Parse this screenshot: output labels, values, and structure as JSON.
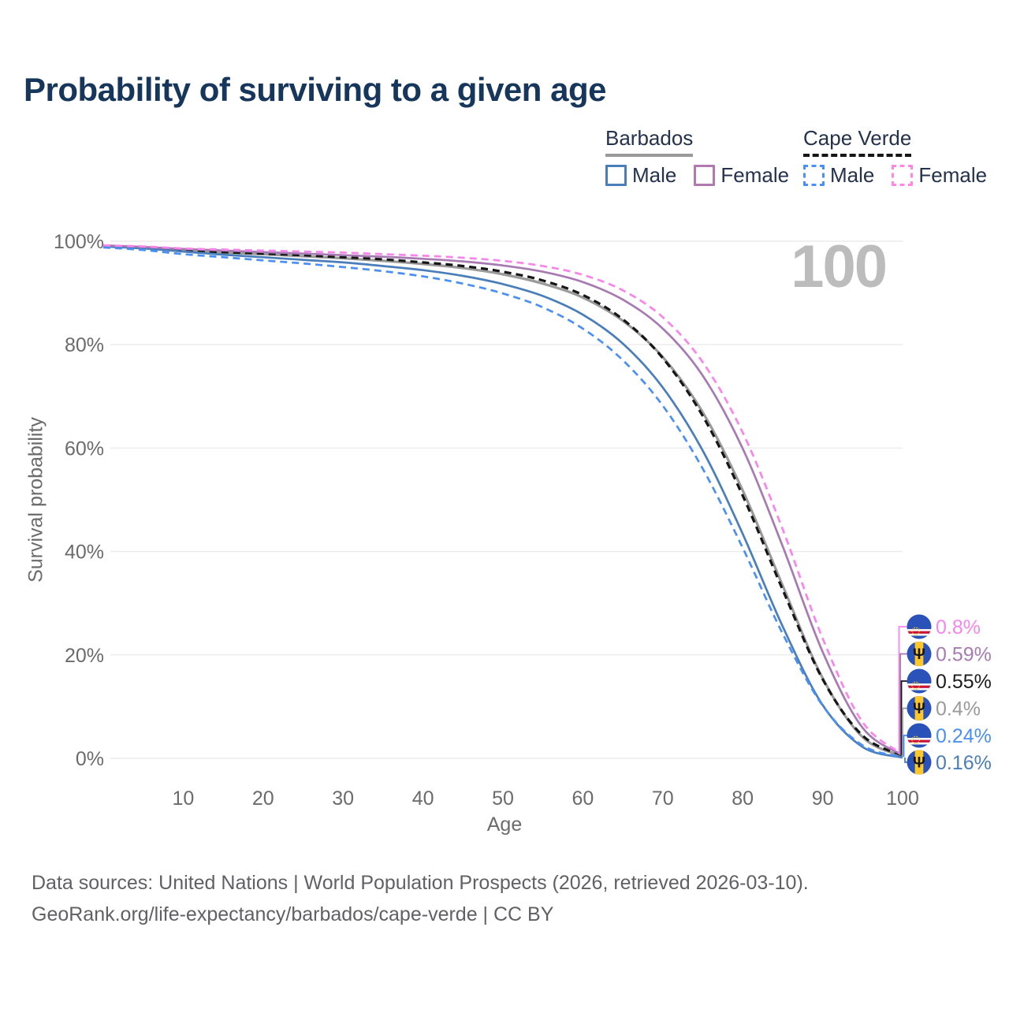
{
  "title": "Probability of surviving to a given age",
  "watermark": "100",
  "legend": {
    "groups": [
      {
        "label": "Barbados",
        "line_style": "solid",
        "underline_color": "#9a9a9a",
        "items": [
          {
            "label": "Male",
            "color": "#4a7ebb",
            "dashed": false
          },
          {
            "label": "Female",
            "color": "#b07ab0",
            "dashed": false
          }
        ]
      },
      {
        "label": "Cape Verde",
        "line_style": "dashed",
        "underline_color": "#161616",
        "items": [
          {
            "label": "Male",
            "color": "#4a90f4",
            "dashed": true
          },
          {
            "label": "Female",
            "color": "#ff85e8",
            "dashed": true
          }
        ]
      }
    ]
  },
  "axes": {
    "x": {
      "label": "Age",
      "ticks": [
        10,
        20,
        30,
        40,
        50,
        60,
        70,
        80,
        90,
        100
      ],
      "range": [
        0,
        100
      ]
    },
    "y": {
      "label": "Survival probability",
      "tick_labels": [
        "0%",
        "20%",
        "40%",
        "60%",
        "80%",
        "100%"
      ],
      "tick_values": [
        0,
        20,
        40,
        60,
        80,
        100
      ],
      "range": [
        0,
        100
      ]
    }
  },
  "chart_data": {
    "type": "line",
    "title": "Probability of surviving to a given age",
    "xlabel": "Age",
    "ylabel": "Survival probability",
    "ylim": [
      0,
      100
    ],
    "xlim": [
      0,
      100
    ],
    "grid": "horizontal",
    "legend_position": "top-right",
    "x_ages": [
      0,
      5,
      10,
      15,
      20,
      25,
      30,
      35,
      40,
      45,
      50,
      55,
      60,
      65,
      70,
      75,
      80,
      85,
      90,
      95,
      100
    ],
    "series": [
      {
        "id": "barbados_all",
        "name": "Barbados (all)",
        "color": "#9a9a9a",
        "dashed": false,
        "width": 3.2,
        "values": [
          99.1,
          98.8,
          98.3,
          97.8,
          97.5,
          97.1,
          96.7,
          96.2,
          95.6,
          94.8,
          93.6,
          91.8,
          89.1,
          84.6,
          77.6,
          66.9,
          51.8,
          33.4,
          15.5,
          4.1,
          0.4
        ]
      },
      {
        "id": "capeverde_all",
        "name": "Cape Verde (all)",
        "color": "#161616",
        "dashed": true,
        "width": 3.2,
        "values": [
          99.0,
          98.7,
          98.2,
          97.9,
          97.6,
          97.3,
          96.9,
          96.5,
          95.9,
          95.2,
          94.1,
          92.4,
          89.6,
          84.9,
          77.4,
          66.2,
          50.8,
          32.6,
          15.3,
          4.4,
          0.55
        ]
      },
      {
        "id": "barbados_male",
        "name": "Barbados Male",
        "color": "#4a7ebb",
        "dashed": false,
        "width": 2.7,
        "values": [
          99.0,
          98.6,
          98.0,
          97.4,
          96.9,
          96.4,
          95.9,
          95.2,
          94.4,
          93.3,
          91.7,
          89.4,
          85.8,
          80.2,
          71.7,
          59.5,
          43.4,
          25.5,
          10.3,
          2.2,
          0.16
        ]
      },
      {
        "id": "capeverde_male",
        "name": "Cape Verde Male",
        "color": "#4a90f4",
        "dashed": true,
        "width": 2.7,
        "values": [
          98.8,
          98.3,
          97.5,
          96.9,
          96.3,
          95.7,
          95.0,
          94.2,
          93.2,
          91.8,
          89.9,
          87.2,
          83.1,
          77.0,
          68.2,
          56.0,
          40.7,
          24.1,
          10.2,
          2.5,
          0.24
        ]
      },
      {
        "id": "barbados_female",
        "name": "Barbados Female",
        "color": "#a87ab3",
        "dashed": false,
        "width": 2.7,
        "values": [
          99.2,
          98.9,
          98.5,
          98.2,
          97.9,
          97.6,
          97.3,
          97.0,
          96.6,
          96.1,
          95.3,
          94.1,
          92.1,
          88.7,
          83.1,
          74.0,
          59.9,
          41.0,
          20.6,
          5.9,
          0.59
        ]
      },
      {
        "id": "capeverde_female",
        "name": "Cape Verde Female",
        "color": "#f985ec",
        "dashed": true,
        "width": 2.7,
        "values": [
          99.2,
          99.0,
          98.6,
          98.4,
          98.2,
          98.0,
          97.8,
          97.5,
          97.2,
          96.8,
          96.2,
          95.2,
          93.5,
          90.5,
          85.3,
          76.6,
          63.0,
          44.3,
          23.2,
          7.0,
          0.8
        ]
      }
    ],
    "end_labels": [
      {
        "text": "0.8%",
        "series": "capeverde_female",
        "flag": "cape-verde",
        "color": "#f985ec"
      },
      {
        "text": "0.59%",
        "series": "barbados_female",
        "flag": "barbados",
        "color": "#a87ab3"
      },
      {
        "text": "0.55%",
        "series": "capeverde_all",
        "flag": "cape-verde",
        "color": "#1c1c1c"
      },
      {
        "text": "0.4%",
        "series": "barbados_all",
        "flag": "barbados",
        "color": "#9a9a9a"
      },
      {
        "text": "0.24%",
        "series": "capeverde_male",
        "flag": "cape-verde",
        "color": "#4a90f4"
      },
      {
        "text": "0.16%",
        "series": "barbados_male",
        "flag": "barbados",
        "color": "#4a7ebb"
      }
    ]
  },
  "colors": {
    "grid": "#ececec",
    "tick_text": "#6b6b6b",
    "title_text": "#17365c",
    "watermark_text": "#bcbcbc",
    "flag_blue": "#2a52b8",
    "flag_yellow": "#ffc726",
    "flag_red": "#d21034"
  },
  "footer": {
    "line1": "Data sources: United Nations | World Population Prospects (2026, retrieved 2026-03-10).",
    "line2": "GeoRank.org/life-expectancy/barbados/cape-verde | CC BY"
  }
}
